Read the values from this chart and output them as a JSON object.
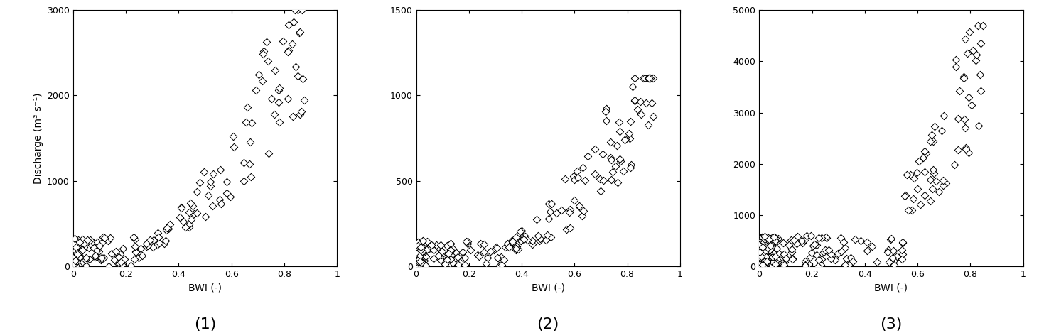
{
  "panels": [
    {
      "label": "(1)",
      "xlabel": "BWI (-)",
      "ylabel": "Discharge (m³ s⁻¹)",
      "xlim": [
        0,
        1
      ],
      "ylim": [
        0,
        3000
      ],
      "yticks": [
        0,
        1000,
        2000,
        3000
      ],
      "xticks": [
        0,
        0.2,
        0.4,
        0.6,
        0.8,
        1
      ]
    },
    {
      "label": "(2)",
      "xlabel": "BWI (-)",
      "ylabel": "",
      "xlim": [
        0,
        1
      ],
      "ylim": [
        0,
        1500
      ],
      "yticks": [
        0,
        500,
        1000,
        1500
      ],
      "xticks": [
        0,
        0.2,
        0.4,
        0.6,
        0.8,
        1
      ]
    },
    {
      "label": "(3)",
      "xlabel": "BWI (-)",
      "ylabel": "",
      "xlim": [
        0,
        1
      ],
      "ylim": [
        0,
        5000
      ],
      "yticks": [
        0,
        1000,
        2000,
        3000,
        4000,
        5000
      ],
      "xticks": [
        0,
        0.2,
        0.4,
        0.6,
        0.8,
        1
      ]
    }
  ],
  "marker": "D",
  "marker_size": 28,
  "marker_color": "black",
  "marker_facecolor": "white",
  "marker_edgewidth": 0.7,
  "background_color": "white",
  "label_fontsize": 16,
  "axis_fontsize": 10
}
